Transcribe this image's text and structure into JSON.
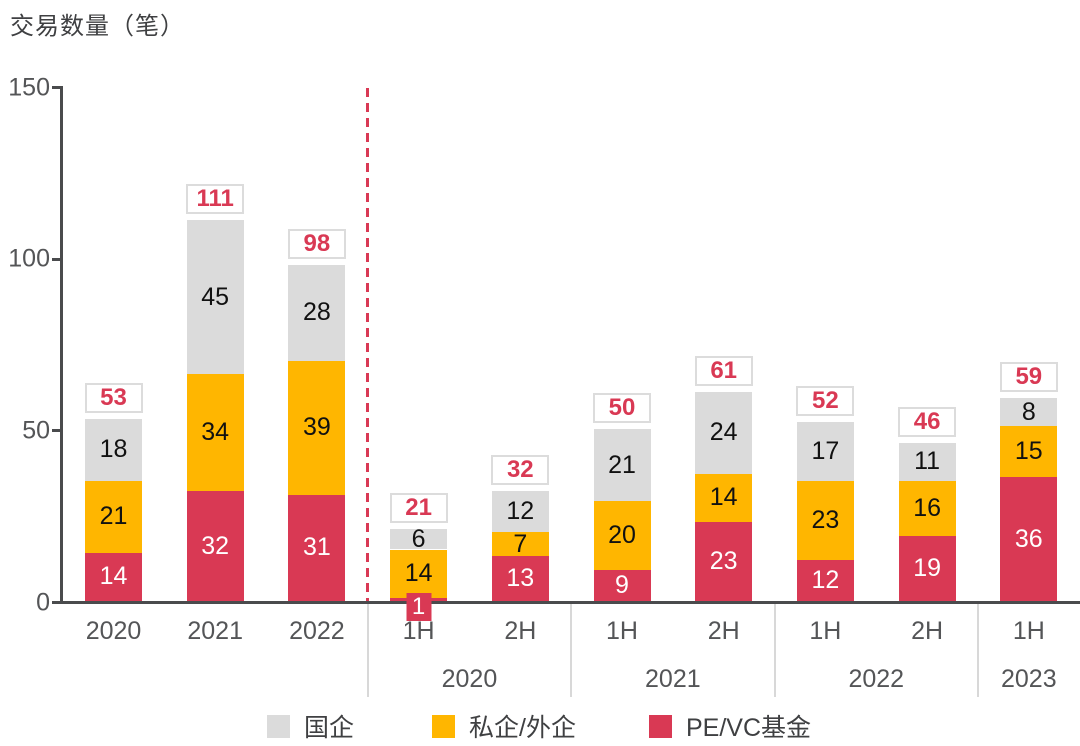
{
  "title": "交易数量（笔）",
  "colors": {
    "red": "#d93954",
    "yellow": "#ffb600",
    "gray": "#dbdbdb",
    "axis": "#4a4b4d",
    "tick_text": "#545557",
    "badge_border": "#dcdcdc",
    "badge_text": "#d93954",
    "separator": "#d8d8d8"
  },
  "chart_data": {
    "type": "bar",
    "subtype": "stacked-vertical",
    "title": "交易数量（笔）",
    "ylabel": "交易数量（笔）",
    "ylim": [
      0,
      150
    ],
    "yticks": [
      0,
      50,
      100,
      150
    ],
    "grid": false,
    "legend_position": "bottom",
    "series": [
      {
        "name": "PE/VC基金",
        "color": "#d93954",
        "label_color": "#ffffff"
      },
      {
        "name": "私企/外企",
        "color": "#ffb600",
        "label_color": "#111111"
      },
      {
        "name": "国企",
        "color": "#dbdbdb",
        "label_color": "#111111"
      }
    ],
    "bars": [
      {
        "label": "2020",
        "values": [
          14,
          21,
          18
        ],
        "total": 53
      },
      {
        "label": "2021",
        "values": [
          32,
          34,
          45
        ],
        "total": 111
      },
      {
        "label": "2022",
        "values": [
          31,
          39,
          28
        ],
        "total": 98
      },
      {
        "label": "1H",
        "values": [
          1,
          14,
          6
        ],
        "total": 21
      },
      {
        "label": "2H",
        "values": [
          13,
          7,
          12
        ],
        "total": 32
      },
      {
        "label": "1H",
        "values": [
          9,
          20,
          21
        ],
        "total": 50
      },
      {
        "label": "2H",
        "values": [
          23,
          14,
          24
        ],
        "total": 61
      },
      {
        "label": "1H",
        "values": [
          12,
          23,
          17
        ],
        "total": 52
      },
      {
        "label": "2H",
        "values": [
          19,
          16,
          11
        ],
        "total": 46
      },
      {
        "label": "1H",
        "values": [
          36,
          15,
          8
        ],
        "total": 59
      }
    ],
    "groups": [
      {
        "label": "2020",
        "bar_indexes": [
          3,
          4
        ]
      },
      {
        "label": "2021",
        "bar_indexes": [
          5,
          6
        ]
      },
      {
        "label": "2022",
        "bar_indexes": [
          7,
          8
        ]
      },
      {
        "label": "2023",
        "bar_indexes": [
          9
        ]
      }
    ],
    "divider_after_bar_index": 2,
    "annotations": [
      "总计标注位于每根柱顶部的白色方框内（红色加粗数字）",
      "虚线分隔年度柱与半年度柱"
    ],
    "legend": [
      {
        "label": "国企",
        "color": "#dbdbdb"
      },
      {
        "label": "私企/外企",
        "color": "#ffb600"
      },
      {
        "label": "PE/VC基金",
        "color": "#d93954"
      }
    ]
  }
}
